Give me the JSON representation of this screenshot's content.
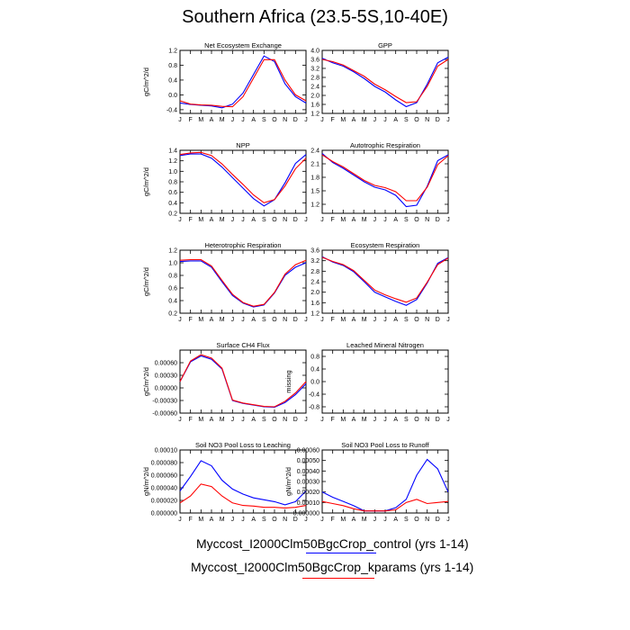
{
  "title": "Southern Africa (23.5-5S,10-40E)",
  "colors": {
    "control": "#0000ff",
    "kparams": "#ff0000",
    "axis": "#000000"
  },
  "legend": {
    "control_label": "Myccost_I2000Clm50BgcCrop_control (yrs 1-14)",
    "kparams_label": "Myccost_I2000Clm50BgcCrop_kparams (yrs 1-14)"
  },
  "chart_data": [
    {
      "type": "line",
      "title": "Net Ecosystem Exchange",
      "ylabel": "gC/m^2/d",
      "categories": [
        "J",
        "F",
        "M",
        "A",
        "M",
        "J",
        "J",
        "A",
        "S",
        "O",
        "N",
        "D",
        "J"
      ],
      "ylim": [
        -0.5,
        1.2
      ],
      "yticks": [
        -0.4,
        0.0,
        0.4,
        0.8,
        1.2
      ],
      "ytick_labels": [
        "-0.4",
        "0.0",
        "0.4",
        "0.8",
        "1.2"
      ],
      "series": [
        {
          "name": "control",
          "values": [
            -0.22,
            -0.26,
            -0.28,
            -0.3,
            -0.35,
            -0.25,
            0.05,
            0.55,
            1.05,
            0.9,
            0.3,
            -0.05,
            -0.22
          ]
        },
        {
          "name": "kparams",
          "values": [
            -0.16,
            -0.25,
            -0.27,
            -0.28,
            -0.31,
            -0.32,
            -0.05,
            0.45,
            0.95,
            0.95,
            0.4,
            0.0,
            -0.16
          ]
        }
      ]
    },
    {
      "type": "line",
      "title": "GPP",
      "ylabel": "",
      "categories": [
        "J",
        "F",
        "M",
        "A",
        "M",
        "J",
        "J",
        "A",
        "S",
        "O",
        "N",
        "D",
        "J"
      ],
      "ylim": [
        1.2,
        4.0
      ],
      "yticks": [
        1.2,
        1.6,
        2.0,
        2.4,
        2.8,
        3.2,
        3.6,
        4.0
      ],
      "ytick_labels": [
        "1.2",
        "1.6",
        "2.0",
        "2.4",
        "2.8",
        "3.2",
        "3.6",
        "4.0"
      ],
      "series": [
        {
          "name": "control",
          "values": [
            3.65,
            3.45,
            3.3,
            3.05,
            2.75,
            2.4,
            2.15,
            1.8,
            1.5,
            1.68,
            2.5,
            3.45,
            3.7
          ]
        },
        {
          "name": "kparams",
          "values": [
            3.6,
            3.5,
            3.35,
            3.1,
            2.85,
            2.5,
            2.25,
            1.95,
            1.68,
            1.72,
            2.4,
            3.3,
            3.6
          ]
        }
      ]
    },
    {
      "type": "line",
      "title": "NPP",
      "ylabel": "gC/m^2/d",
      "categories": [
        "J",
        "F",
        "M",
        "A",
        "M",
        "J",
        "J",
        "A",
        "S",
        "O",
        "N",
        "D",
        "J"
      ],
      "ylim": [
        0.2,
        1.4
      ],
      "yticks": [
        0.2,
        0.4,
        0.6,
        0.8,
        1.0,
        1.2,
        1.4
      ],
      "ytick_labels": [
        "0.2",
        "0.4",
        "0.6",
        "0.8",
        "1.0",
        "1.2",
        "1.4"
      ],
      "series": [
        {
          "name": "control",
          "values": [
            1.3,
            1.33,
            1.33,
            1.25,
            1.08,
            0.88,
            0.68,
            0.48,
            0.34,
            0.46,
            0.78,
            1.15,
            1.32
          ]
        },
        {
          "name": "kparams",
          "values": [
            1.32,
            1.35,
            1.36,
            1.3,
            1.14,
            0.94,
            0.75,
            0.55,
            0.4,
            0.46,
            0.72,
            1.05,
            1.25
          ]
        }
      ]
    },
    {
      "type": "line",
      "title": "Autotrophic Respiration",
      "ylabel": "",
      "categories": [
        "J",
        "F",
        "M",
        "A",
        "M",
        "J",
        "J",
        "A",
        "S",
        "O",
        "N",
        "D",
        "J"
      ],
      "ylim": [
        1.0,
        2.4
      ],
      "yticks": [
        1.2,
        1.5,
        1.8,
        2.1,
        2.4
      ],
      "ytick_labels": [
        "1.2",
        "1.5",
        "1.8",
        "2.1",
        "2.4"
      ],
      "series": [
        {
          "name": "control",
          "values": [
            2.33,
            2.13,
            2.0,
            1.85,
            1.7,
            1.58,
            1.52,
            1.4,
            1.15,
            1.18,
            1.6,
            2.17,
            2.3
          ]
        },
        {
          "name": "kparams",
          "values": [
            2.3,
            2.15,
            2.03,
            1.88,
            1.73,
            1.62,
            1.57,
            1.48,
            1.28,
            1.28,
            1.58,
            2.08,
            2.28
          ]
        }
      ]
    },
    {
      "type": "line",
      "title": "Heterotrophic Respiration",
      "ylabel": "gC/m^2/d",
      "categories": [
        "J",
        "F",
        "M",
        "A",
        "M",
        "J",
        "J",
        "A",
        "S",
        "O",
        "N",
        "D",
        "J"
      ],
      "ylim": [
        0.2,
        1.2
      ],
      "yticks": [
        0.2,
        0.4,
        0.6,
        0.8,
        1.0,
        1.2
      ],
      "ytick_labels": [
        "0.2",
        "0.4",
        "0.6",
        "0.8",
        "1.0",
        "1.2"
      ],
      "series": [
        {
          "name": "control",
          "values": [
            1.02,
            1.03,
            1.03,
            0.93,
            0.7,
            0.48,
            0.36,
            0.3,
            0.33,
            0.52,
            0.8,
            0.93,
            1.0
          ]
        },
        {
          "name": "kparams",
          "values": [
            1.04,
            1.05,
            1.05,
            0.95,
            0.72,
            0.5,
            0.37,
            0.31,
            0.34,
            0.53,
            0.82,
            0.97,
            1.04
          ]
        }
      ]
    },
    {
      "type": "line",
      "title": "Ecosystem Respiration",
      "ylabel": "",
      "categories": [
        "J",
        "F",
        "M",
        "A",
        "M",
        "J",
        "J",
        "A",
        "S",
        "O",
        "N",
        "D",
        "J"
      ],
      "ylim": [
        1.2,
        3.6
      ],
      "yticks": [
        1.2,
        1.6,
        2.0,
        2.4,
        2.8,
        3.2,
        3.6
      ],
      "ytick_labels": [
        "1.2",
        "1.6",
        "2.0",
        "2.4",
        "2.8",
        "3.2",
        "3.6"
      ],
      "series": [
        {
          "name": "control",
          "values": [
            3.35,
            3.15,
            3.02,
            2.78,
            2.4,
            2.0,
            1.82,
            1.65,
            1.5,
            1.72,
            2.35,
            3.1,
            3.32
          ]
        },
        {
          "name": "kparams",
          "values": [
            3.33,
            3.17,
            3.05,
            2.82,
            2.45,
            2.08,
            1.9,
            1.75,
            1.62,
            1.78,
            2.38,
            3.05,
            3.3
          ]
        }
      ]
    },
    {
      "type": "line",
      "title": "Surface CH4 Flux",
      "ylabel": "gC/m^2/d",
      "categories": [
        "J",
        "F",
        "M",
        "A",
        "M",
        "J",
        "J",
        "A",
        "S",
        "O",
        "N",
        "D",
        "J"
      ],
      "ylim": [
        -0.0006,
        0.0009
      ],
      "yticks": [
        -0.0006,
        -0.0003,
        0.0,
        0.0003,
        0.0006
      ],
      "ytick_labels": [
        "-0.00060",
        "-0.00030",
        "0.00000",
        "0.00030",
        "0.00060"
      ],
      "series": [
        {
          "name": "control",
          "values": [
            0.00015,
            0.00062,
            0.00076,
            0.00068,
            0.00045,
            -0.0003,
            -0.00037,
            -0.00041,
            -0.00045,
            -0.00046,
            -0.00035,
            -0.00016,
            0.0001
          ]
        },
        {
          "name": "kparams",
          "values": [
            0.00015,
            0.00064,
            0.00079,
            0.00071,
            0.00047,
            -0.00029,
            -0.00036,
            -0.0004,
            -0.00044,
            -0.00045,
            -0.00032,
            -0.00012,
            0.00015
          ]
        }
      ]
    },
    {
      "type": "line",
      "title": "Leached Mineral Nitrogen",
      "ylabel": "missing",
      "categories": [
        "J",
        "F",
        "M",
        "A",
        "M",
        "J",
        "J",
        "A",
        "S",
        "O",
        "N",
        "D",
        "J"
      ],
      "ylim": [
        -1.0,
        1.0
      ],
      "yticks": [
        -0.8,
        -0.4,
        0.0,
        0.4,
        0.8
      ],
      "ytick_labels": [
        "-0.8",
        "-0.4",
        "0.0",
        "0.4",
        "0.8"
      ],
      "series": []
    },
    {
      "type": "line",
      "title": "Soil NO3 Pool Loss to Leaching",
      "ylabel": "gN/m^2/d",
      "categories": [
        "J",
        "F",
        "M",
        "A",
        "M",
        "J",
        "J",
        "A",
        "S",
        "O",
        "N",
        "D",
        "J"
      ],
      "ylim": [
        0.0,
        0.0001
      ],
      "yticks": [
        0.0,
        2e-05,
        4e-05,
        6e-05,
        8e-05,
        0.0001
      ],
      "ytick_labels": [
        "0.000000",
        "0.000020",
        "0.000040",
        "0.000060",
        "0.000080",
        "0.00010"
      ],
      "series": [
        {
          "name": "control",
          "values": [
            3.5e-05,
            5.8e-05,
            8.3e-05,
            7.5e-05,
            5.2e-05,
            3.8e-05,
            3e-05,
            2.4e-05,
            2.1e-05,
            1.8e-05,
            1.3e-05,
            1.8e-05,
            3.5e-05
          ]
        },
        {
          "name": "kparams",
          "values": [
            1.6e-05,
            2.7e-05,
            4.6e-05,
            4.2e-05,
            2.7e-05,
            1.6e-05,
            1.2e-05,
            1.1e-05,
            9e-06,
            9e-06,
            8e-06,
            9e-06,
            1.2e-05
          ]
        }
      ]
    },
    {
      "type": "line",
      "title": "Soil NO3 Pool Loss to Runoff",
      "ylabel": "gN/m^2/d",
      "categories": [
        "J",
        "F",
        "M",
        "A",
        "M",
        "J",
        "J",
        "A",
        "S",
        "O",
        "N",
        "D",
        "J"
      ],
      "ylim": [
        0.0,
        0.0006
      ],
      "yticks": [
        0.0,
        0.0001,
        0.0002,
        0.0003,
        0.0004,
        0.0005,
        0.0006
      ],
      "ytick_labels": [
        "0.000000",
        "0.00010",
        "0.00020",
        "0.00030",
        "0.00040",
        "0.00050",
        "0.00060"
      ],
      "series": [
        {
          "name": "control",
          "values": [
            0.0002,
            0.00015,
            0.00011,
            7e-05,
            2e-05,
            2e-05,
            2e-05,
            5e-05,
            0.00013,
            0.00036,
            0.00051,
            0.00042,
            0.0002
          ]
        },
        {
          "name": "kparams",
          "values": [
            0.00011,
            9e-05,
            7e-05,
            4e-05,
            2e-05,
            2e-05,
            2e-05,
            3e-05,
            0.0001,
            0.00013,
            9e-05,
            0.0001,
            0.00011
          ]
        }
      ]
    }
  ]
}
